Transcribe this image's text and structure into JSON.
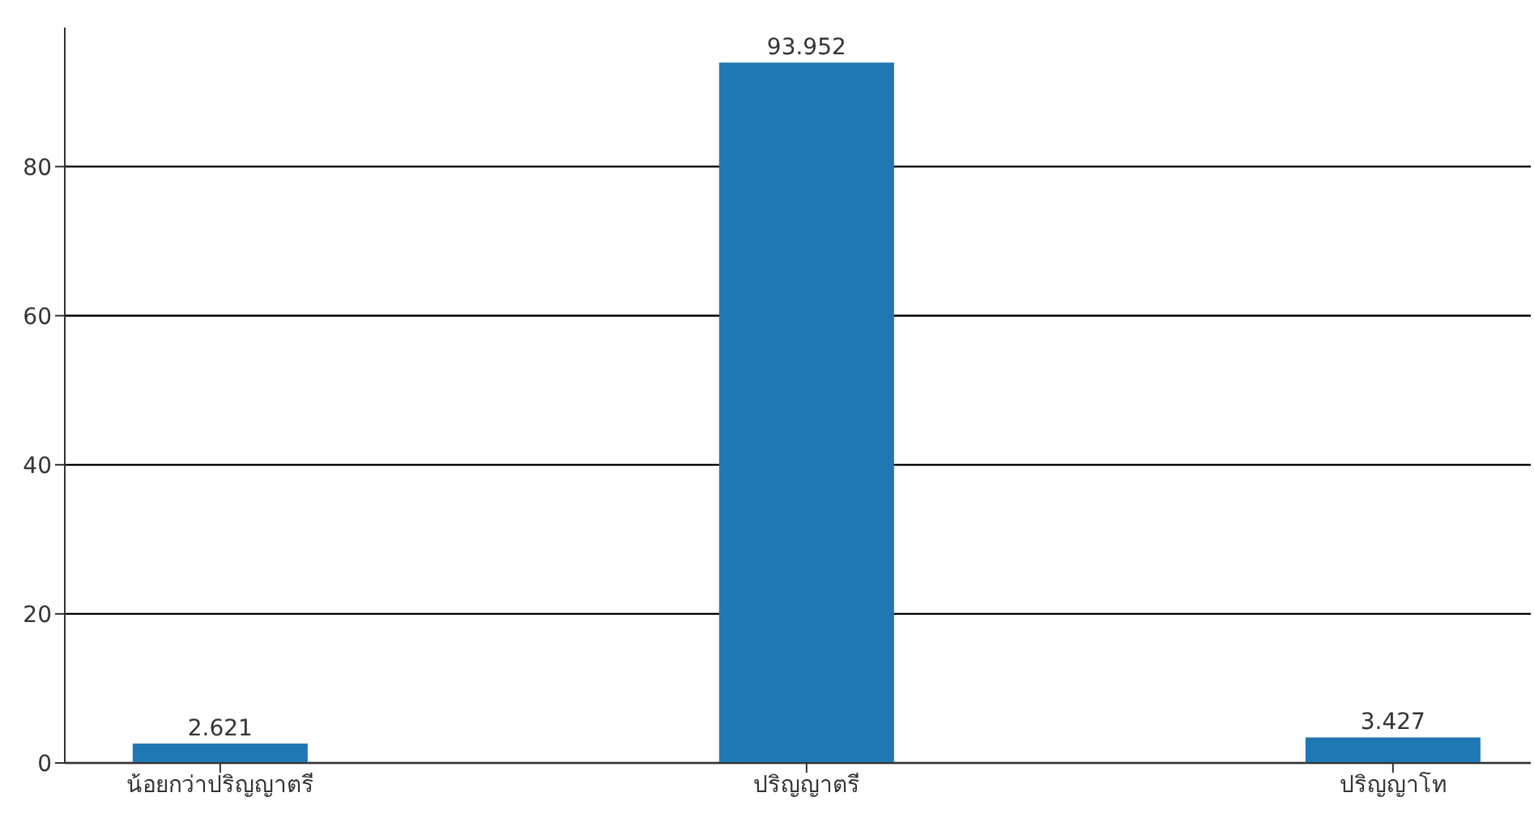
{
  "chart_data": {
    "type": "bar",
    "categories": [
      "น้อยกว่าปริญญาตรี",
      "ปริญญาตรี",
      "ปริญญาโท"
    ],
    "values": [
      2.621,
      93.952,
      3.427
    ],
    "color": "#1f77b4",
    "ylim": [
      0,
      98.65
    ],
    "yticks": [
      0,
      20,
      40,
      60,
      80
    ],
    "grid": "y",
    "data_labels": true
  }
}
